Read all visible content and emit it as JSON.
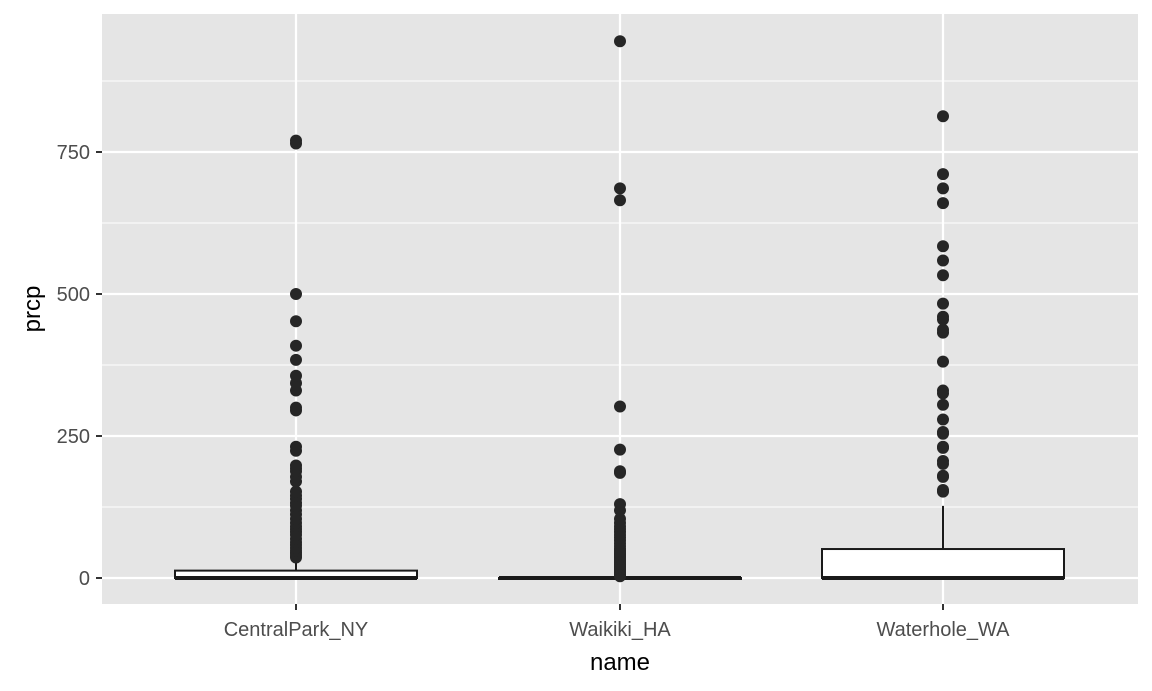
{
  "chart_data": {
    "type": "boxplot",
    "title": "",
    "xlabel": "name",
    "ylabel": "prcp",
    "categories": [
      "CentralPark_NY",
      "Waikiki_HA",
      "Waterhole_WA"
    ],
    "ylim": [
      -38,
      968
    ],
    "yticks": [
      0,
      250,
      500,
      750
    ],
    "ytick_labels": [
      "0",
      "250",
      "500",
      "750"
    ],
    "grid": true,
    "legend": "none",
    "colors": {
      "panel_background": "#e5e5e5",
      "grid": "#ffffff",
      "box_fill": "#ffffff",
      "box_stroke": "#1a1a1a",
      "outlier": "#262626",
      "tick_text": "#4d4d4d",
      "axis_title": "#000000"
    },
    "boxes": [
      {
        "name": "CentralPark_NY",
        "min": 0,
        "q1": 0,
        "median": 0,
        "q3": 13,
        "max": 33,
        "outliers": [
          36,
          40,
          44,
          48,
          53,
          58,
          63,
          69,
          76,
          81,
          86,
          91,
          97,
          104,
          112,
          119,
          127,
          132,
          139,
          145,
          152,
          170,
          178,
          188,
          193,
          198,
          224,
          231,
          295,
          300,
          330,
          343,
          356,
          384,
          409,
          452,
          500,
          765,
          770
        ]
      },
      {
        "name": "Waikiki_HA",
        "min": 0,
        "q1": 0,
        "median": 0,
        "q3": 0,
        "max": 0,
        "outliers": [
          3,
          5,
          8,
          10,
          13,
          15,
          18,
          20,
          23,
          25,
          28,
          30,
          33,
          36,
          38,
          41,
          43,
          46,
          48,
          51,
          56,
          61,
          66,
          71,
          76,
          81,
          86,
          91,
          97,
          104,
          119,
          130,
          185,
          188,
          226,
          302,
          665,
          686,
          945
        ]
      },
      {
        "name": "Waterhole_WA",
        "min": 0,
        "q1": 0,
        "median": 0,
        "q3": 51,
        "max": 127,
        "outliers": [
          152,
          155,
          178,
          180,
          201,
          206,
          229,
          231,
          254,
          257,
          279,
          305,
          325,
          330,
          381,
          432,
          437,
          455,
          460,
          483,
          533,
          559,
          584,
          660,
          686,
          711,
          813
        ]
      }
    ]
  }
}
